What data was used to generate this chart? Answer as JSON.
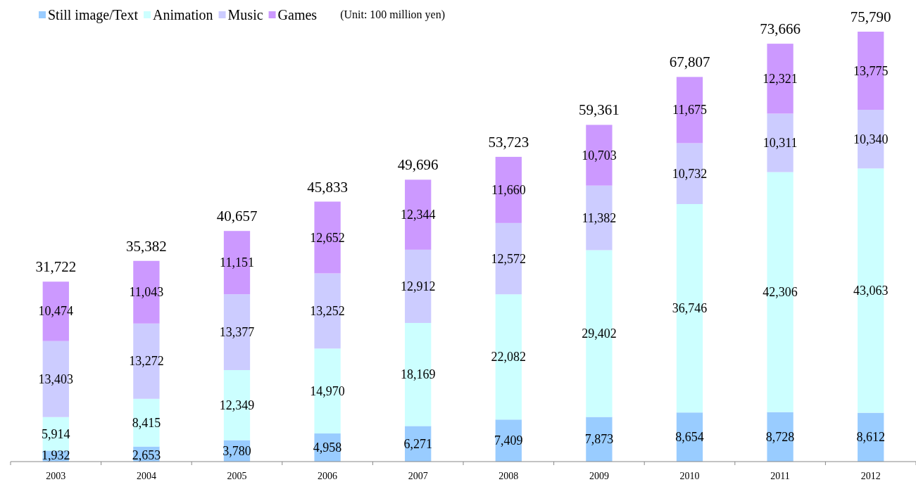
{
  "chart_data": {
    "type": "bar",
    "stacked": true,
    "legend": "top left",
    "categories": [
      "2003",
      "2004",
      "2005",
      "2006",
      "2007",
      "2008",
      "2009",
      "2010",
      "2011",
      "2012"
    ],
    "series": [
      {
        "name": "Still image/Text",
        "color": "#99ccff",
        "values": [
          1932,
          2653,
          3780,
          4958,
          6271,
          7409,
          7873,
          8654,
          8728,
          8612
        ],
        "value_labels": [
          "1,932",
          "2,653",
          "3,780",
          "4,958",
          "6,271",
          "7,409",
          "7,873",
          "8,654",
          "8,728",
          "8,612"
        ]
      },
      {
        "name": "Animation",
        "color": "#ccffff",
        "values": [
          5914,
          8415,
          12349,
          14970,
          18169,
          22082,
          29402,
          36746,
          42306,
          43063
        ],
        "value_labels": [
          "5,914",
          "8,415",
          "12,349",
          "14,970",
          "18,169",
          "22,082",
          "29,402",
          "36,746",
          "42,306",
          "43,063"
        ]
      },
      {
        "name": "Music",
        "color": "#ccccff",
        "values": [
          13403,
          13272,
          13377,
          13252,
          12912,
          12572,
          11382,
          10732,
          10311,
          10340
        ],
        "value_labels": [
          "13,403",
          "13,272",
          "13,377",
          "13,252",
          "12,912",
          "12,572",
          "11,382",
          "10,732",
          "10,311",
          "10,340"
        ]
      },
      {
        "name": "Games",
        "color": "#cc99ff",
        "values": [
          10474,
          11043,
          11151,
          12652,
          12344,
          11660,
          10703,
          11675,
          12321,
          13775
        ],
        "value_labels": [
          "10,474",
          "11,043",
          "11,151",
          "12,652",
          "12,344",
          "11,660",
          "10,703",
          "11,675",
          "12,321",
          "13,775"
        ]
      }
    ],
    "totals": [
      "31,722",
      "35,382",
      "40,657",
      "45,833",
      "49,696",
      "53,723",
      "59,361",
      "67,807",
      "73,666",
      "75,790"
    ],
    "annotations": [
      "(Unit: 100 million yen)"
    ]
  }
}
